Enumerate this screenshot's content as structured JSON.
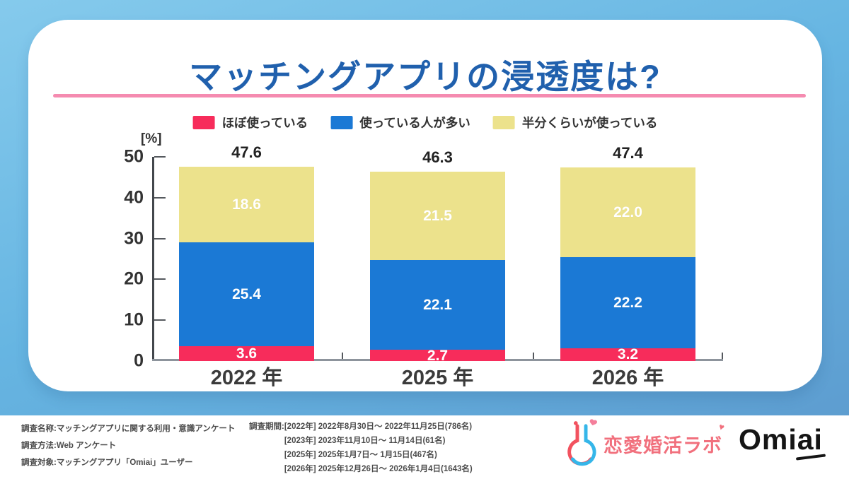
{
  "title": "マッチングアプリの浸透度は?",
  "colors": {
    "title_blue": "#2060ad",
    "underline_pink": "#f58bb0",
    "series_red": "#f72c5b",
    "series_blue": "#1b79d5",
    "series_yellow": "#ece28c",
    "background_top": "#85caec",
    "background_bottom": "#5c99cd"
  },
  "chart_data": {
    "type": "bar",
    "subtype": "stacked",
    "categories": [
      "2022 年",
      "2025 年",
      "2026 年"
    ],
    "series": [
      {
        "name": "ほぼ使っている",
        "color": "#f72c5b",
        "values": [
          "3.6",
          "2.7",
          "3.2"
        ]
      },
      {
        "name": "使っている人が多い",
        "color": "#1b79d5",
        "values": [
          "25.4",
          "22.1",
          "22.2"
        ]
      },
      {
        "name": "半分くらいが使っている",
        "color": "#ece28c",
        "values": [
          "18.6",
          "21.5",
          "22.0"
        ]
      }
    ],
    "totals": [
      "47.6",
      "46.3",
      "47.4"
    ],
    "ylabel": "[%]",
    "xlabel": "",
    "ylim": [
      0,
      50
    ],
    "yticks": [
      0,
      10,
      20,
      30,
      40,
      50
    ],
    "grid": false,
    "legend_position": "top"
  },
  "footer": {
    "meta": [
      "調査名称:マッチングアプリに関する利用・意識アンケート",
      "調査方法:Web アンケート",
      "調査対象:マッチングアプリ「Omiai」ユーザー"
    ],
    "period_label": "調査期間:",
    "periods": [
      "[2022年] 2022年8月30日〜 2022年11月25日(786名)",
      "[2023年] 2023年11月10日〜 11月14日(61名)",
      "[2025年] 2025年1月7日〜 1月15日(467名)",
      "[2026年] 2025年12月26日〜 2026年1月4日(1643名)"
    ],
    "lab_logo_text": "恋愛婚活ラボ",
    "lab_heart": "♥",
    "omiai_logo": {
      "prefix": "Omi",
      "underlined": "ai"
    }
  }
}
